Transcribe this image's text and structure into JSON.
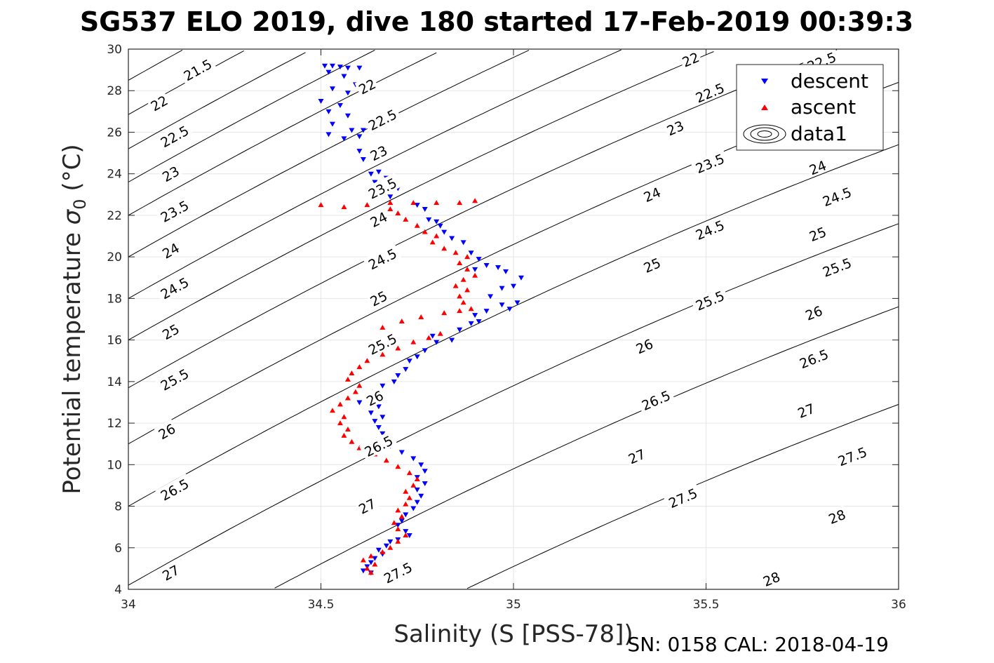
{
  "chart_data": {
    "type": "scatter",
    "title": "SG537 ELO 2019, dive 180 started 17-Feb-2019 00:39:3",
    "xlabel": "Salinity (S [PSS-78])",
    "ylabel_main": "Potential temperature ",
    "ylabel_sigma": "σ",
    "ylabel_sub": "0",
    "ylabel_unit": " (°C)",
    "footer": "SN: 0158  CAL: 2018-04-19",
    "xlim": [
      34,
      36
    ],
    "ylim": [
      4,
      30
    ],
    "x_ticks": [
      34,
      34.5,
      35,
      35.5,
      36
    ],
    "x_tick_labels": [
      "34",
      "34.5",
      "35",
      "35.5",
      "36"
    ],
    "y_ticks": [
      4,
      6,
      8,
      10,
      12,
      14,
      16,
      18,
      20,
      22,
      24,
      26,
      28,
      30
    ],
    "y_tick_labels": [
      "4",
      "6",
      "8",
      "10",
      "12",
      "14",
      "16",
      "18",
      "20",
      "22",
      "24",
      "26",
      "28",
      "30"
    ],
    "grid": true,
    "legend": {
      "location": "top-right",
      "entries": [
        {
          "name": "descent",
          "marker": "triangle-down",
          "color": "#0000ff"
        },
        {
          "name": "ascent",
          "marker": "triangle-up",
          "color": "#ff0000"
        },
        {
          "name": "data1",
          "marker": "contour",
          "color": "#000000"
        }
      ]
    },
    "contours": {
      "levels": [
        21.5,
        22,
        22.5,
        23,
        23.5,
        24,
        24.5,
        25,
        25.5,
        26,
        26.5,
        27,
        27.5,
        28
      ],
      "level_labels": [
        "21.5",
        "22",
        "22.5",
        "23",
        "23.5",
        "24",
        "24.5",
        "25",
        "25.5",
        "26",
        "26.5",
        "27",
        "27.5",
        "28"
      ],
      "ref_theta_at_s34": [
        28.5,
        26.85,
        25.2,
        23.6,
        22.0,
        20.0,
        18.0,
        16.0,
        13.7,
        11.0,
        8.0,
        4.2,
        0.2,
        -4.5
      ],
      "dtheta_ds": 10.5,
      "labels": [
        {
          "level": 21.5,
          "x": 34.18,
          "y": 29.0
        },
        {
          "level": 22,
          "x": 34.08,
          "y": 27.4
        },
        {
          "level": 22,
          "x": 34.62,
          "y": 28.2
        },
        {
          "level": 22,
          "x": 35.46,
          "y": 29.5
        },
        {
          "level": 22.5,
          "x": 34.12,
          "y": 25.8
        },
        {
          "level": 22.5,
          "x": 34.66,
          "y": 26.6
        },
        {
          "level": 22.5,
          "x": 35.51,
          "y": 27.9
        },
        {
          "level": 22.5,
          "x": 35.8,
          "y": 29.4
        },
        {
          "level": 23,
          "x": 34.11,
          "y": 24.0
        },
        {
          "level": 23,
          "x": 34.65,
          "y": 25.0
        },
        {
          "level": 23,
          "x": 35.42,
          "y": 26.2
        },
        {
          "level": 23.5,
          "x": 34.12,
          "y": 22.2
        },
        {
          "level": 23.5,
          "x": 34.66,
          "y": 23.3
        },
        {
          "level": 23.5,
          "x": 35.51,
          "y": 24.5
        },
        {
          "level": 24,
          "x": 34.11,
          "y": 20.3
        },
        {
          "level": 24,
          "x": 34.65,
          "y": 21.8
        },
        {
          "level": 24,
          "x": 35.36,
          "y": 23.0
        },
        {
          "level": 24,
          "x": 35.79,
          "y": 24.3
        },
        {
          "level": 24.5,
          "x": 34.12,
          "y": 18.5
        },
        {
          "level": 24.5,
          "x": 34.66,
          "y": 19.9
        },
        {
          "level": 24.5,
          "x": 35.51,
          "y": 21.3
        },
        {
          "level": 24.5,
          "x": 35.84,
          "y": 22.9
        },
        {
          "level": 25,
          "x": 34.11,
          "y": 16.4
        },
        {
          "level": 25,
          "x": 34.65,
          "y": 18.0
        },
        {
          "level": 25,
          "x": 35.36,
          "y": 19.6
        },
        {
          "level": 25,
          "x": 35.79,
          "y": 21.1
        },
        {
          "level": 25.5,
          "x": 34.12,
          "y": 14.1
        },
        {
          "level": 25.5,
          "x": 34.66,
          "y": 15.8
        },
        {
          "level": 25.5,
          "x": 35.51,
          "y": 17.9
        },
        {
          "level": 25.5,
          "x": 35.84,
          "y": 19.5
        },
        {
          "level": 26,
          "x": 34.1,
          "y": 11.6
        },
        {
          "level": 26,
          "x": 34.64,
          "y": 13.2
        },
        {
          "level": 26,
          "x": 35.34,
          "y": 15.7
        },
        {
          "level": 26,
          "x": 35.78,
          "y": 17.3
        },
        {
          "level": 26.5,
          "x": 34.12,
          "y": 8.8
        },
        {
          "level": 26.5,
          "x": 34.65,
          "y": 10.9
        },
        {
          "level": 26.5,
          "x": 35.37,
          "y": 13.1
        },
        {
          "level": 26.5,
          "x": 35.78,
          "y": 15.1
        },
        {
          "level": 27,
          "x": 34.11,
          "y": 4.8
        },
        {
          "level": 27,
          "x": 34.62,
          "y": 8.0
        },
        {
          "level": 27,
          "x": 35.32,
          "y": 10.4
        },
        {
          "level": 27,
          "x": 35.76,
          "y": 12.6
        },
        {
          "level": 27.5,
          "x": 34.7,
          "y": 4.8
        },
        {
          "level": 27.5,
          "x": 35.44,
          "y": 8.4
        },
        {
          "level": 27.5,
          "x": 35.88,
          "y": 10.4
        },
        {
          "level": 28,
          "x": 35.67,
          "y": 4.5
        },
        {
          "level": 28,
          "x": 35.84,
          "y": 7.5
        }
      ]
    },
    "series": [
      {
        "name": "descent",
        "marker": "triangle-down",
        "color": "#0000ff",
        "points": [
          [
            34.51,
            29.2
          ],
          [
            34.53,
            29.2
          ],
          [
            34.55,
            29.15
          ],
          [
            34.57,
            29.1
          ],
          [
            34.6,
            29.1
          ],
          [
            34.52,
            28.9
          ],
          [
            34.56,
            28.7
          ],
          [
            34.59,
            28.3
          ],
          [
            34.53,
            28.1
          ],
          [
            34.57,
            27.9
          ],
          [
            34.5,
            27.5
          ],
          [
            34.55,
            27.3
          ],
          [
            34.52,
            27.0
          ],
          [
            34.57,
            26.8
          ],
          [
            34.53,
            26.4
          ],
          [
            34.58,
            26.1
          ],
          [
            34.61,
            26.1
          ],
          [
            34.6,
            25.8
          ],
          [
            34.52,
            25.9
          ],
          [
            34.56,
            25.7
          ],
          [
            34.6,
            25.1
          ],
          [
            34.61,
            24.7
          ],
          [
            34.63,
            24.0
          ],
          [
            34.65,
            24.1
          ],
          [
            34.67,
            23.8
          ],
          [
            34.64,
            23.6
          ],
          [
            34.69,
            23.6
          ],
          [
            34.7,
            23.3
          ],
          [
            34.68,
            22.9
          ],
          [
            34.75,
            22.5
          ],
          [
            34.77,
            22.3
          ],
          [
            34.78,
            21.8
          ],
          [
            34.8,
            21.7
          ],
          [
            34.81,
            21.5
          ],
          [
            34.82,
            21.2
          ],
          [
            34.84,
            20.9
          ],
          [
            34.87,
            20.7
          ],
          [
            34.89,
            20.2
          ],
          [
            34.91,
            19.9
          ],
          [
            34.9,
            19.4
          ],
          [
            34.93,
            19.6
          ],
          [
            34.96,
            19.5
          ],
          [
            34.98,
            19.3
          ],
          [
            35.02,
            19.0
          ],
          [
            35.0,
            18.6
          ],
          [
            34.97,
            18.5
          ],
          [
            34.94,
            18.1
          ],
          [
            34.97,
            17.7
          ],
          [
            35.01,
            17.8
          ],
          [
            34.99,
            17.5
          ],
          [
            34.93,
            17.4
          ],
          [
            34.9,
            17.2
          ],
          [
            34.91,
            16.9
          ],
          [
            34.89,
            16.8
          ],
          [
            34.86,
            16.5
          ],
          [
            34.84,
            16.0
          ],
          [
            34.79,
            16.2
          ],
          [
            34.8,
            15.9
          ],
          [
            34.77,
            15.5
          ],
          [
            34.75,
            15.2
          ],
          [
            34.73,
            15.0
          ],
          [
            34.72,
            14.6
          ],
          [
            34.7,
            14.3
          ],
          [
            34.69,
            14.0
          ],
          [
            34.66,
            13.8
          ],
          [
            34.64,
            13.5
          ],
          [
            34.62,
            13.2
          ],
          [
            34.6,
            13.0
          ],
          [
            34.65,
            12.8
          ],
          [
            34.63,
            12.5
          ],
          [
            34.66,
            12.3
          ],
          [
            34.64,
            12.1
          ],
          [
            34.65,
            11.8
          ],
          [
            34.66,
            11.5
          ],
          [
            34.65,
            11.2
          ],
          [
            34.68,
            10.9
          ],
          [
            34.71,
            10.6
          ],
          [
            34.74,
            10.3
          ],
          [
            34.76,
            10.0
          ],
          [
            34.77,
            9.7
          ],
          [
            34.75,
            9.4
          ],
          [
            34.77,
            9.1
          ],
          [
            34.75,
            8.8
          ],
          [
            34.76,
            8.5
          ],
          [
            34.75,
            8.2
          ],
          [
            34.74,
            7.9
          ],
          [
            34.72,
            7.6
          ],
          [
            34.71,
            7.3
          ],
          [
            34.7,
            7.1
          ],
          [
            34.72,
            6.8
          ],
          [
            34.73,
            6.6
          ],
          [
            34.7,
            6.4
          ],
          [
            34.68,
            6.3
          ],
          [
            34.67,
            6.1
          ],
          [
            34.65,
            5.9
          ],
          [
            34.66,
            5.7
          ],
          [
            34.64,
            5.5
          ],
          [
            34.63,
            5.3
          ],
          [
            34.62,
            5.1
          ],
          [
            34.61,
            4.9
          ],
          [
            34.63,
            4.8
          ]
        ]
      },
      {
        "name": "ascent",
        "marker": "triangle-up",
        "color": "#ff0000",
        "points": [
          [
            34.63,
            4.8
          ],
          [
            34.62,
            5.0
          ],
          [
            34.64,
            5.2
          ],
          [
            34.61,
            5.4
          ],
          [
            34.63,
            5.6
          ],
          [
            34.66,
            5.8
          ],
          [
            34.68,
            6.0
          ],
          [
            34.7,
            6.3
          ],
          [
            34.72,
            6.6
          ],
          [
            34.7,
            6.9
          ],
          [
            34.69,
            7.2
          ],
          [
            34.71,
            7.5
          ],
          [
            34.7,
            7.8
          ],
          [
            34.72,
            8.1
          ],
          [
            34.73,
            8.4
          ],
          [
            34.72,
            8.7
          ],
          [
            34.74,
            9.0
          ],
          [
            34.75,
            9.3
          ],
          [
            34.73,
            9.6
          ],
          [
            34.7,
            9.9
          ],
          [
            34.67,
            10.2
          ],
          [
            34.64,
            10.5
          ],
          [
            34.6,
            10.8
          ],
          [
            34.58,
            11.1
          ],
          [
            34.56,
            11.4
          ],
          [
            34.57,
            11.7
          ],
          [
            34.55,
            12.0
          ],
          [
            34.56,
            12.3
          ],
          [
            34.53,
            12.6
          ],
          [
            34.55,
            12.9
          ],
          [
            34.57,
            13.2
          ],
          [
            34.59,
            13.5
          ],
          [
            34.6,
            13.8
          ],
          [
            34.57,
            14.1
          ],
          [
            34.58,
            14.4
          ],
          [
            34.6,
            14.7
          ],
          [
            34.62,
            15.0
          ],
          [
            34.66,
            15.3
          ],
          [
            34.7,
            15.6
          ],
          [
            34.74,
            15.9
          ],
          [
            34.78,
            16.1
          ],
          [
            34.81,
            16.3
          ],
          [
            34.69,
            16.4
          ],
          [
            34.66,
            16.6
          ],
          [
            34.71,
            16.9
          ],
          [
            34.76,
            17.1
          ],
          [
            34.82,
            17.3
          ],
          [
            34.86,
            17.4
          ],
          [
            34.89,
            17.5
          ],
          [
            34.87,
            17.8
          ],
          [
            34.86,
            18.1
          ],
          [
            34.88,
            18.4
          ],
          [
            34.85,
            18.6
          ],
          [
            34.87,
            18.9
          ],
          [
            34.9,
            19.1
          ],
          [
            34.88,
            19.4
          ],
          [
            34.86,
            19.7
          ],
          [
            34.88,
            20.0
          ],
          [
            34.85,
            20.2
          ],
          [
            34.82,
            20.4
          ],
          [
            34.79,
            20.7
          ],
          [
            34.8,
            21.0
          ],
          [
            34.77,
            21.2
          ],
          [
            34.75,
            21.5
          ],
          [
            34.72,
            21.8
          ],
          [
            34.7,
            22.1
          ],
          [
            34.68,
            22.3
          ],
          [
            34.5,
            22.5
          ],
          [
            34.56,
            22.4
          ],
          [
            34.62,
            22.5
          ],
          [
            34.68,
            22.6
          ],
          [
            34.74,
            22.6
          ],
          [
            34.8,
            22.6
          ],
          [
            34.86,
            22.6
          ],
          [
            34.9,
            22.7
          ]
        ]
      }
    ]
  }
}
